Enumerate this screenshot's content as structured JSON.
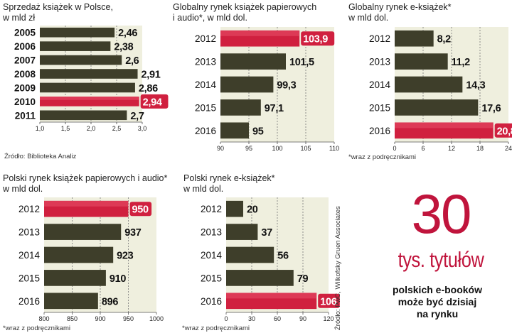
{
  "chart_data": [
    {
      "id": "poland",
      "type": "bar",
      "title_lines": [
        "Sprzedaż książek w Polsce,",
        "w mld zł"
      ],
      "categories": [
        "2005",
        "2006",
        "2007",
        "2008",
        "2009",
        "2010",
        "2011"
      ],
      "values": [
        2.46,
        2.38,
        2.6,
        2.91,
        2.86,
        2.94,
        2.7
      ],
      "labels": [
        "2,46",
        "2,38",
        "2,6",
        "2,91",
        "2,86",
        "2,94",
        "2,7"
      ],
      "highlight_index": 5,
      "xlim": [
        1.0,
        3.0
      ],
      "ticks": [
        1.0,
        1.5,
        2.0,
        2.5,
        3.0
      ],
      "tick_labels": [
        "1,0",
        "1,5",
        "2,0",
        "2,5",
        "3,0"
      ],
      "note": "Źródło: Biblioteka Analiz"
    },
    {
      "id": "global_paper",
      "type": "bar",
      "title_lines": [
        "Globalny rynek książek papierowych",
        "i audio*, w mld dol."
      ],
      "categories": [
        "2012",
        "2013",
        "2014",
        "2015",
        "2016"
      ],
      "values": [
        103.9,
        101.5,
        99.3,
        97.1,
        95
      ],
      "labels": [
        "103,9",
        "101,5",
        "99,3",
        "97,1",
        "95"
      ],
      "highlight_index": 0,
      "xlim": [
        90,
        110
      ],
      "ticks": [
        90,
        95,
        100,
        105,
        110
      ],
      "tick_labels": [
        "90",
        "95",
        "100",
        "105",
        "110"
      ],
      "note": ""
    },
    {
      "id": "global_ebook",
      "type": "bar",
      "title_lines": [
        "Globalny rynek e-książek*",
        "w mld dol."
      ],
      "categories": [
        "2012",
        "2013",
        "2014",
        "2015",
        "2016"
      ],
      "values": [
        8.2,
        11.2,
        14.3,
        17.6,
        20.8
      ],
      "labels": [
        "8,2",
        "11,2",
        "14,3",
        "17,6",
        "20,8"
      ],
      "highlight_index": 4,
      "xlim": [
        0,
        24
      ],
      "ticks": [
        0,
        6,
        12,
        18,
        24
      ],
      "tick_labels": [
        "0",
        "6",
        "12",
        "18",
        "24"
      ],
      "note": "*wraz z podręcznikami"
    },
    {
      "id": "poland_paper",
      "type": "bar",
      "title_lines": [
        "Polski rynek książek papierowych i audio*",
        "w mld dol."
      ],
      "categories": [
        "2012",
        "2013",
        "2014",
        "2015",
        "2016"
      ],
      "values": [
        950,
        937,
        923,
        910,
        896
      ],
      "labels": [
        "950",
        "937",
        "923",
        "910",
        "896"
      ],
      "highlight_index": 0,
      "xlim": [
        800,
        1000
      ],
      "ticks": [
        800,
        850,
        900,
        950,
        1000
      ],
      "tick_labels": [
        "800",
        "850",
        "900",
        "950",
        "1000"
      ],
      "note": "*wraz z podręcznikami"
    },
    {
      "id": "poland_ebook",
      "type": "bar",
      "title_lines": [
        "Polski rynek e-książek*",
        "w mld dol."
      ],
      "categories": [
        "2012",
        "2013",
        "2014",
        "2015",
        "2016"
      ],
      "values": [
        20,
        37,
        56,
        79,
        106
      ],
      "labels": [
        "20",
        "37",
        "56",
        "79",
        "106"
      ],
      "highlight_index": 4,
      "xlim": [
        0,
        120
      ],
      "ticks": [
        0,
        30,
        60,
        90,
        120
      ],
      "tick_labels": [
        "0",
        "30",
        "60",
        "90",
        "120"
      ],
      "note": "*wraz z podręcznikami"
    }
  ],
  "callout": {
    "number": "30",
    "unit": "tys. tytułów",
    "line1": "polskich e-booków",
    "line2": "może być dzisiaj",
    "line3": "na rynku"
  },
  "source_vertical": "Źródło: PwC, Wilkofsky Gruen Associates",
  "colors": {
    "bar_green": "#3e3e2a",
    "highlight": "#d0203f",
    "panel_bg": "#efefde",
    "accent": "#c0143c"
  }
}
